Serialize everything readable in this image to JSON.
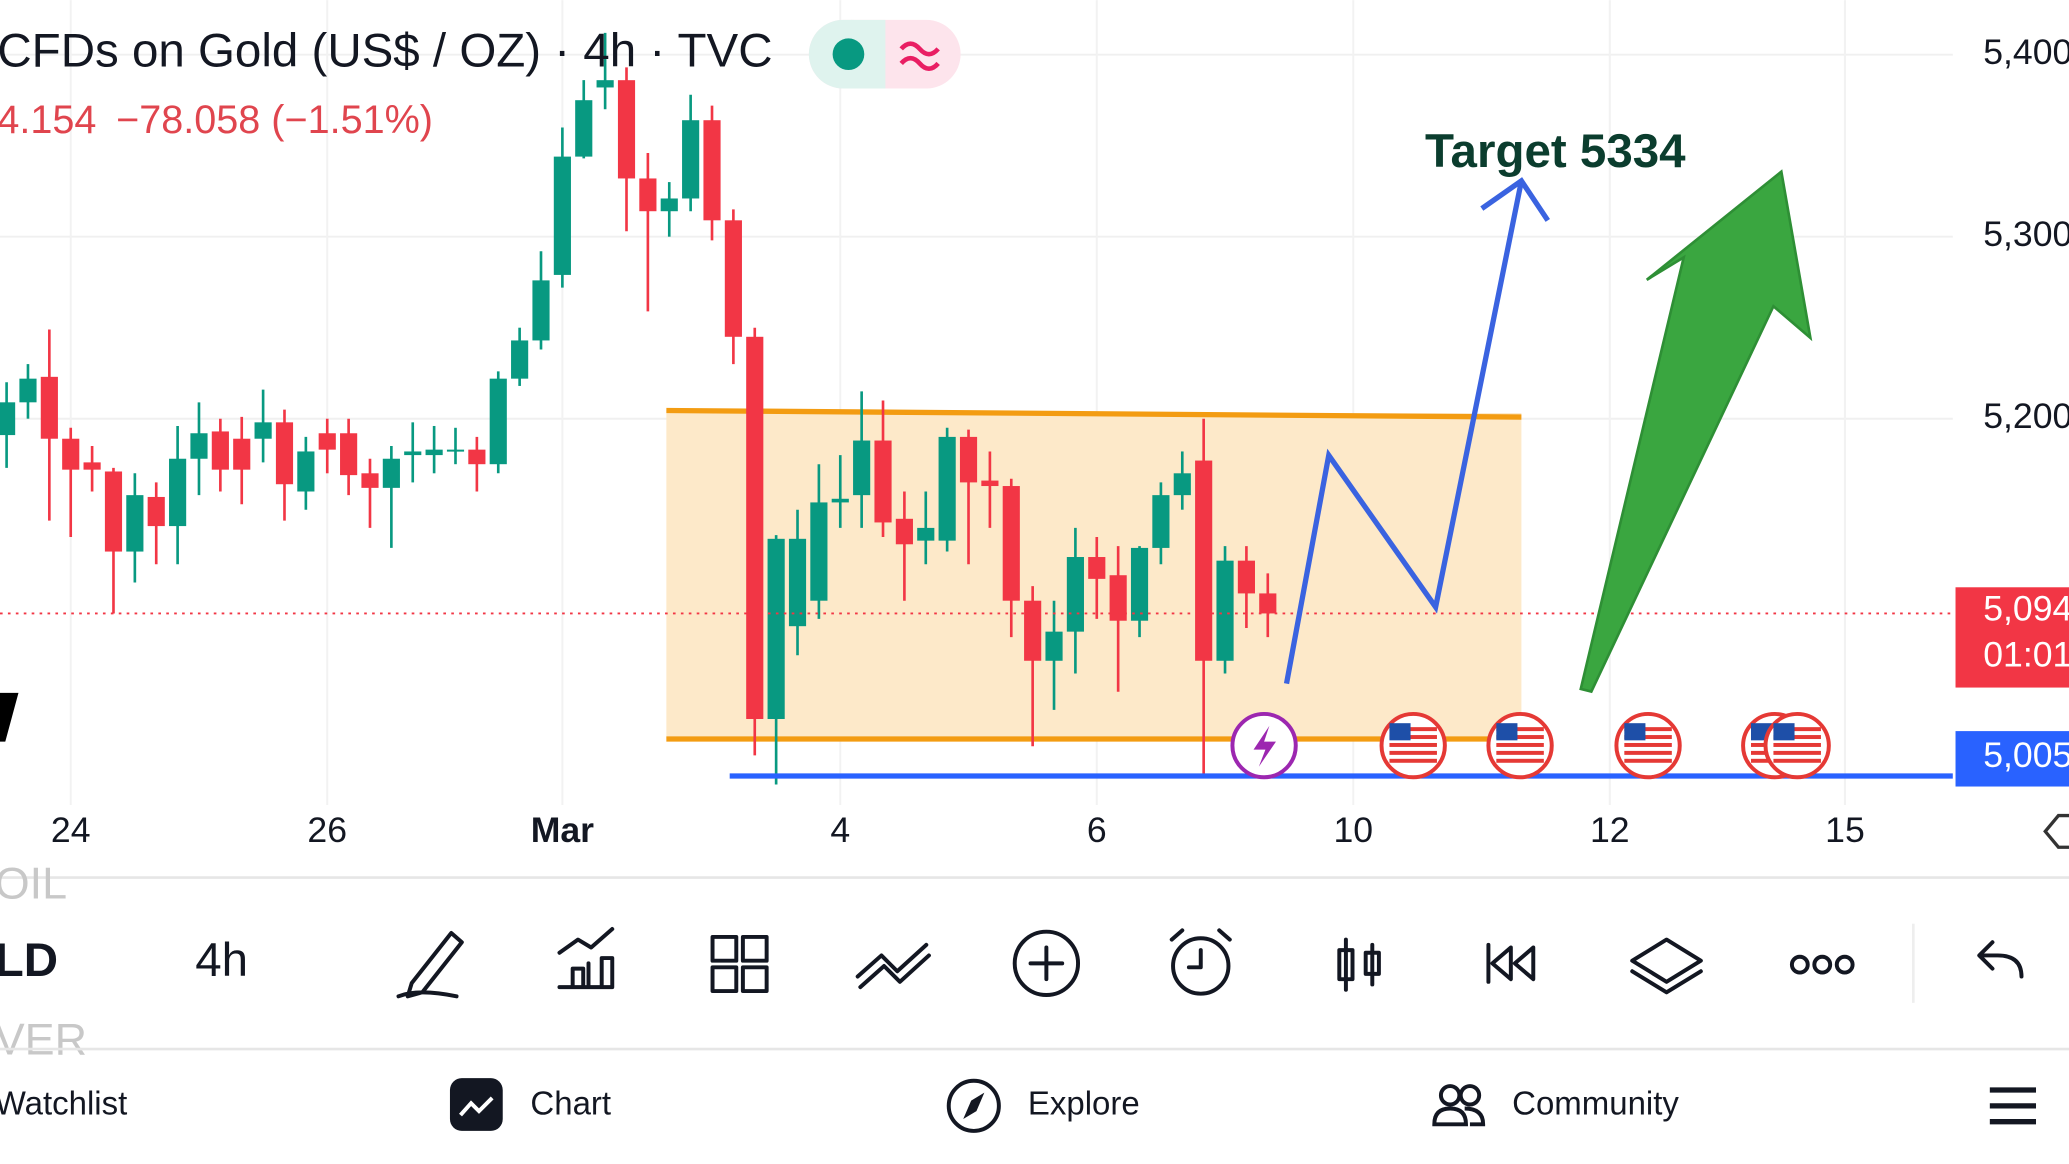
{
  "chart_data": {
    "type": "candlestick",
    "title": "CFDs on Gold (US$ / OZ) · 4h · TVC",
    "quote": "4.154",
    "change": "−78.058 (−1.51%)",
    "categories": [
      null,
      null,
      null,
      "24",
      null,
      null,
      null,
      null,
      null,
      null,
      null,
      null,
      null,
      null,
      null,
      "26",
      null,
      null,
      null,
      null,
      null,
      null,
      null,
      null,
      null,
      null,
      "Mar",
      null,
      null,
      null,
      null,
      null,
      null,
      null,
      null,
      null,
      null,
      null,
      null,
      "4",
      null,
      null,
      null,
      null,
      null,
      null,
      null,
      null,
      null,
      null,
      null,
      "6",
      null,
      null,
      null,
      null,
      null,
      null,
      null,
      null,
      null,
      null,
      null,
      "10",
      null,
      null,
      null,
      null,
      null,
      null,
      null,
      null,
      null,
      null,
      null,
      "12",
      null,
      null,
      null,
      null,
      null,
      null,
      null,
      null,
      null,
      null,
      "15",
      null,
      null,
      null,
      null
    ],
    "open": [
      5191,
      5209,
      5223,
      5189,
      5176,
      5171,
      5127,
      5157,
      5141,
      5178,
      5193,
      5189,
      5189,
      5198,
      5160,
      5192,
      5192,
      5170,
      5162,
      5180,
      5180,
      5182,
      5183,
      5175,
      5222,
      5243,
      5279,
      5344,
      5382,
      5386,
      5332,
      5314,
      5321,
      5364,
      5309,
      5245,
      5035,
      5086,
      5100,
      5154,
      5158,
      5188,
      5145,
      5133,
      5133,
      5190,
      5166,
      5163,
      5100,
      5067,
      5083,
      5124,
      5114,
      5089,
      5129,
      5158,
      5177,
      5067,
      5122,
      5104,
      null,
      null,
      null,
      null,
      null,
      null,
      null,
      null,
      null,
      null,
      null,
      null,
      null,
      null,
      null,
      null,
      null,
      null,
      null,
      null,
      null,
      null,
      null,
      null,
      null,
      null,
      null,
      null,
      null,
      null,
      null
    ],
    "high": [
      5220,
      5230,
      5249,
      5195,
      5185,
      5173,
      5170,
      5165,
      5196,
      5209,
      5200,
      5201,
      5216,
      5205,
      5190,
      5200,
      5200,
      5178,
      5185,
      5198,
      5196,
      5195,
      5190,
      5226,
      5250,
      5292,
      5360,
      5386,
      5412,
      5393,
      5346,
      5330,
      5378,
      5372,
      5315,
      5250,
      5136,
      5150,
      5175,
      5180,
      5215,
      5210,
      5160,
      5160,
      5195,
      5194,
      5182,
      5167,
      5108,
      5100,
      5140,
      5135,
      5130,
      5130,
      5165,
      5182,
      5200,
      5130,
      5130,
      5115,
      null,
      null,
      null,
      null,
      null,
      null,
      null,
      null,
      null,
      null,
      null,
      null,
      null,
      null,
      null,
      null,
      null,
      null,
      null,
      null,
      null,
      null,
      null,
      null,
      null,
      null,
      null,
      null,
      null,
      null,
      null
    ],
    "low": [
      5173,
      5200,
      5144,
      5135,
      5160,
      5093,
      5110,
      5120,
      5120,
      5158,
      5160,
      5153,
      5176,
      5144,
      5150,
      5170,
      5158,
      5140,
      5129,
      5165,
      5170,
      5175,
      5160,
      5170,
      5218,
      5238,
      5272,
      5343,
      5370,
      5303,
      5259,
      5300,
      5314,
      5298,
      5230,
      5015,
      4999,
      5070,
      5090,
      5140,
      5140,
      5135,
      5100,
      5120,
      5127,
      5120,
      5140,
      5080,
      5020,
      5040,
      5060,
      5090,
      5050,
      5080,
      5120,
      5150,
      5004,
      5060,
      5085,
      5080,
      null,
      null,
      null,
      null,
      null,
      null,
      null,
      null,
      null,
      null,
      null,
      null,
      null,
      null,
      null,
      null,
      null,
      null,
      null,
      null,
      null,
      null,
      null,
      null,
      null,
      null,
      null,
      null,
      null,
      null,
      null
    ],
    "close": [
      5209,
      5222,
      5189,
      5172,
      5172,
      5127,
      5158,
      5141,
      5178,
      5192,
      5172,
      5172,
      5198,
      5164,
      5182,
      5183,
      5169,
      5162,
      5178,
      5182,
      5183,
      5183,
      5175,
      5222,
      5243,
      5276,
      5344,
      5375,
      5386,
      5332,
      5314,
      5321,
      5364,
      5309,
      5245,
      5035,
      5134,
      5134,
      5154,
      5156,
      5188,
      5143,
      5131,
      5140,
      5190,
      5165,
      5163,
      5100,
      5067,
      5083,
      5124,
      5112,
      5089,
      5129,
      5158,
      5170,
      5067,
      5122,
      5104,
      5093,
      null,
      null,
      null,
      null,
      null,
      null,
      null,
      null,
      null,
      null,
      null,
      null,
      null,
      null,
      null,
      null,
      null,
      null,
      null,
      null,
      null,
      null,
      null,
      null,
      null,
      null,
      null,
      null,
      null,
      null,
      null
    ],
    "up_color": "#089981",
    "down_color": "#f23645",
    "ylim": [
      4995,
      5430
    ],
    "yticks": [
      {
        "value": 5400,
        "label": "5,400"
      },
      {
        "value": 5300,
        "label": "5,300"
      },
      {
        "value": 5200,
        "label": "5,200"
      }
    ],
    "grid": true,
    "annotation": "Target 5334",
    "price_labels": [
      "5,094",
      "01:01",
      "5,005"
    ]
  },
  "ui": {
    "symbols": [
      "OIL",
      "LD",
      "VER"
    ],
    "interval": "4h",
    "tabs": [
      "Watchlist",
      "Chart",
      "Explore",
      "Community"
    ]
  }
}
